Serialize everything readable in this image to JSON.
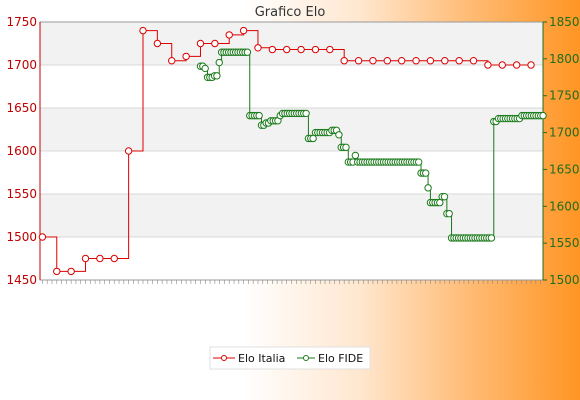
{
  "chart_data": {
    "type": "line",
    "title": "Grafico Elo",
    "left_axis": {
      "ylim": [
        1450,
        1750
      ],
      "ticks": [
        1450,
        1500,
        1550,
        1600,
        1650,
        1700,
        1750
      ],
      "color": "#c00000"
    },
    "right_axis": {
      "ylim": [
        1500,
        1850
      ],
      "ticks": [
        1500,
        1550,
        1600,
        1650,
        1700,
        1750,
        1800,
        1850
      ],
      "color": "#1f6d1f"
    },
    "grid": true,
    "legend_position": "bottom",
    "x_tick_count": 105,
    "series": [
      {
        "name": "Elo Italia",
        "axis": "left",
        "color": "#dd0000",
        "values": [
          1500,
          1460,
          1460,
          1475,
          1475,
          1475,
          1600,
          1740,
          1725,
          1705,
          1710,
          1725,
          1725,
          1735,
          1740,
          1720,
          1718,
          1718,
          1718,
          1718,
          1718,
          1705,
          1705,
          1705,
          1705,
          1705,
          1705,
          1705,
          1705,
          1705,
          1705,
          1700,
          1700,
          1700,
          1700
        ]
      },
      {
        "name": "Elo FIDE",
        "axis": "right",
        "color": "#1a7a1a",
        "start_index": 33,
        "values": [
          1790,
          1790,
          1787,
          1775,
          1775,
          1775,
          1777,
          1777,
          1795,
          1809,
          1809,
          1809,
          1809,
          1809,
          1809,
          1809,
          1809,
          1809,
          1809,
          1809,
          1809,
          1723,
          1723,
          1723,
          1723,
          1723,
          1710,
          1710,
          1713,
          1713,
          1716,
          1716,
          1716,
          1716,
          1723,
          1726,
          1726,
          1726,
          1726,
          1726,
          1726,
          1726,
          1726,
          1726,
          1726,
          1726,
          1692,
          1692,
          1692,
          1700,
          1700,
          1700,
          1700,
          1700,
          1700,
          1700,
          1703,
          1703,
          1703,
          1697,
          1680,
          1680,
          1680,
          1660,
          1660,
          1660,
          1669,
          1660,
          1660,
          1660,
          1660,
          1660,
          1660,
          1660,
          1660,
          1660,
          1660,
          1660,
          1660,
          1660,
          1660,
          1660,
          1660,
          1660,
          1660,
          1660,
          1660,
          1660,
          1660,
          1660,
          1660,
          1660,
          1660,
          1660,
          1645,
          1645,
          1645,
          1625,
          1605,
          1605,
          1605,
          1605,
          1605,
          1613,
          1613,
          1590,
          1590,
          1557,
          1557,
          1557,
          1557,
          1557,
          1557,
          1557,
          1557,
          1557,
          1557,
          1557,
          1557,
          1557,
          1557,
          1557,
          1557,
          1557,
          1557,
          1715,
          1715,
          1719,
          1719,
          1719,
          1719,
          1719,
          1719,
          1719,
          1719,
          1719,
          1719,
          1723,
          1723,
          1723,
          1723,
          1723,
          1723,
          1723,
          1723,
          1723,
          1723
        ]
      }
    ]
  }
}
